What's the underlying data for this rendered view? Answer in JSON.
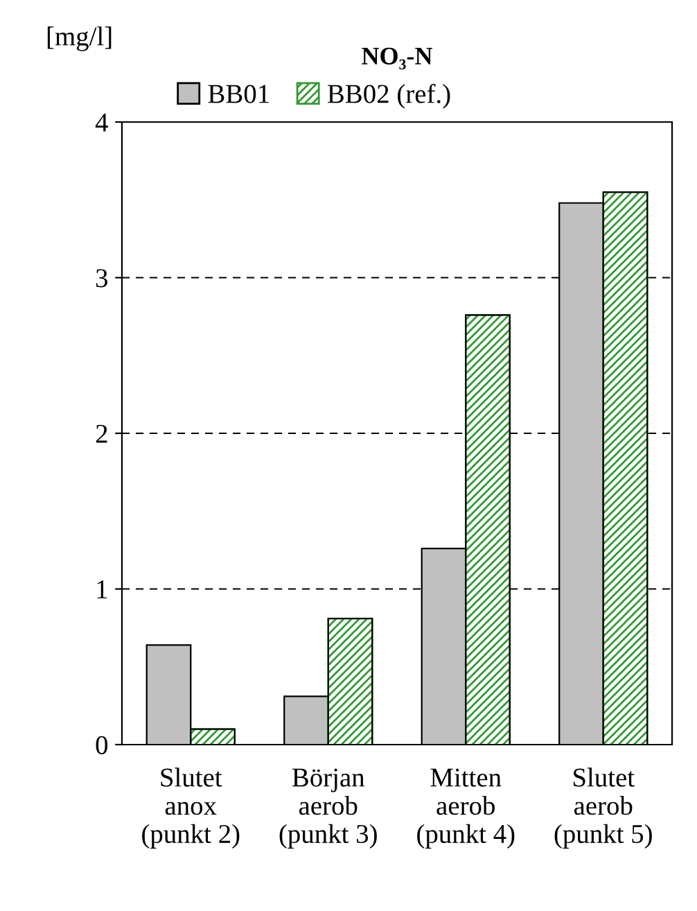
{
  "chart_data": {
    "type": "bar",
    "title": "NO₃-N",
    "ylabel": "[mg/l]",
    "categories": [
      "Slutet\nanox\n(punkt 2)",
      "Början\naerob\n(punkt 3)",
      "Mitten\naerob\n(punkt 4)",
      "Slutet\naerob\n(punkt 5)"
    ],
    "series": [
      {
        "name": "BB01",
        "color": "#c0c0c0",
        "values": [
          0.64,
          0.31,
          1.26,
          3.48
        ]
      },
      {
        "name": "BB02 (ref.)",
        "color": "#339933",
        "values": [
          0.1,
          0.81,
          2.76,
          3.55
        ]
      }
    ],
    "ylim": [
      0,
      4
    ],
    "yticks": [
      0,
      1,
      2,
      3,
      4
    ],
    "grid": "y",
    "legend": "top"
  }
}
